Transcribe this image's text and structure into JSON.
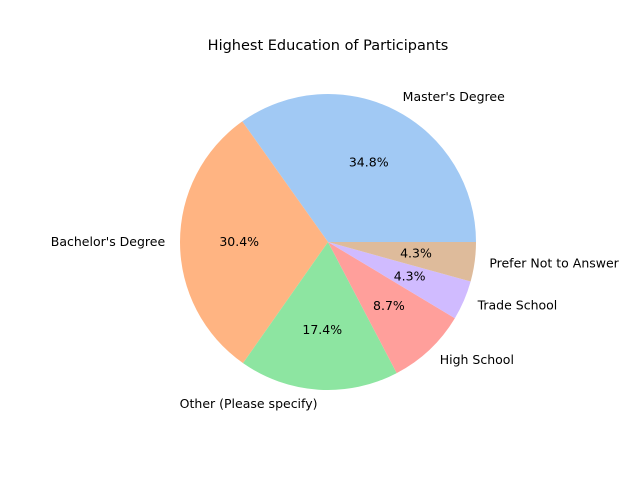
{
  "chart_data": {
    "type": "pie",
    "title": "Highest Education of Participants",
    "slices": [
      {
        "label": "Master's Degree",
        "value": 34.8,
        "pct_label": "34.8%",
        "color": "#a1c9f4"
      },
      {
        "label": "Bachelor's Degree",
        "value": 30.4,
        "pct_label": "30.4%",
        "color": "#ffb482"
      },
      {
        "label": "Other (Please specify)",
        "value": 17.4,
        "pct_label": "17.4%",
        "color": "#8de5a1"
      },
      {
        "label": "High School",
        "value": 8.7,
        "pct_label": "8.7%",
        "color": "#ff9f9b"
      },
      {
        "label": "Trade School",
        "value": 4.3,
        "pct_label": "4.3%",
        "color": "#d0bbff"
      },
      {
        "label": "Prefer Not to Answer",
        "value": 4.3,
        "pct_label": "4.3%",
        "color": "#debb9b"
      }
    ],
    "start_angle_deg": 0,
    "direction": "counterclockwise",
    "legend": "none"
  }
}
